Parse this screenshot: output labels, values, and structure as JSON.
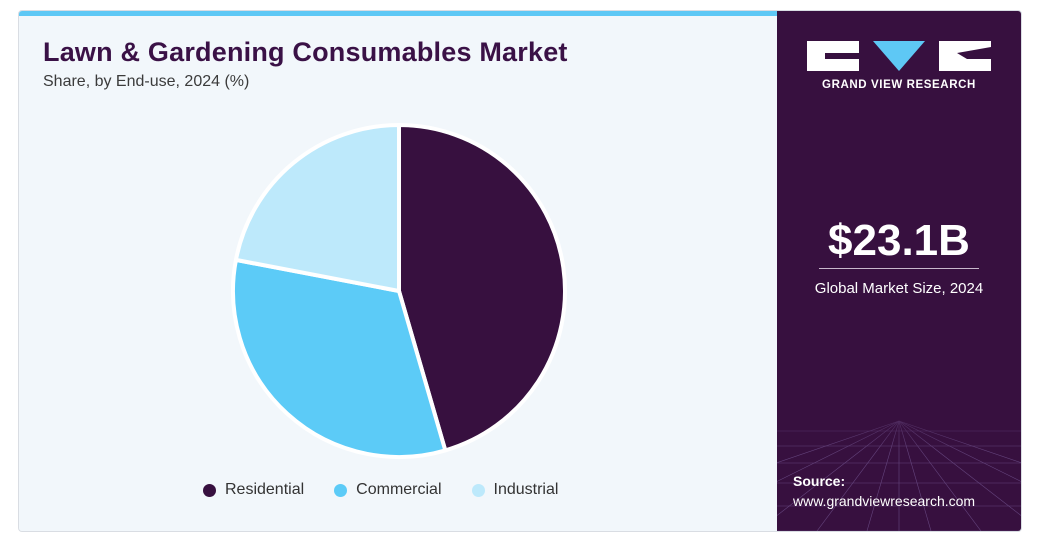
{
  "header": {
    "title": "Lawn & Gardening Consumables Market",
    "subtitle": "Share, by End-use, 2024 (%)"
  },
  "chart_data": {
    "type": "pie",
    "categories": [
      "Residential",
      "Commercial",
      "Industrial"
    ],
    "values": [
      45.5,
      32.5,
      22.0
    ],
    "colors": [
      "#37103f",
      "#5ccbf7",
      "#bde9fb"
    ],
    "start_angle_deg": 0,
    "direction": "clockwise",
    "legend": "bottom"
  },
  "sidebar": {
    "brand": "GRAND VIEW RESEARCH",
    "market_value": "$23.1B",
    "market_label": "Global Market Size, 2024",
    "source_label": "Source:",
    "source_url": "www.grandviewresearch.com"
  }
}
